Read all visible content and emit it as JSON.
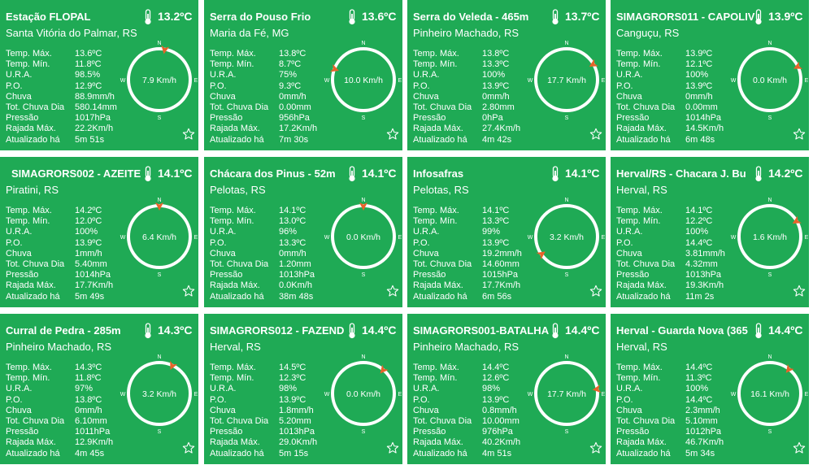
{
  "stations": [
    {
      "name": "Estação FLOPAL",
      "city": "Santa Vitória do Palmar, RS",
      "temp": "13.2ºC",
      "wind": "7.9 Km/h",
      "dir": 10,
      "rows": [
        [
          "Temp. Máx.",
          "13.6ºC"
        ],
        [
          "Temp. Mín.",
          "11.8ºC"
        ],
        [
          "U.R.A.",
          "98.5%"
        ],
        [
          "P.O.",
          "12.9ºC"
        ],
        [
          "Chuva",
          "88.9mm/h"
        ],
        [
          "Tot. Chuva Dia",
          "580.14mm"
        ],
        [
          "Pressão",
          "1017hPa"
        ],
        [
          "Rajada Máx.",
          "22.2Km/h"
        ],
        [
          "Atualizado há",
          "5m 51s"
        ]
      ]
    },
    {
      "name": "Serra do Pouso Frio",
      "city": "Maria da Fé, MG",
      "temp": "13.6ºC",
      "wind": "10.0 Km/h",
      "dir": 290,
      "rows": [
        [
          "Temp. Máx.",
          "13.8ºC"
        ],
        [
          "Temp. Mín.",
          "8.7ºC"
        ],
        [
          "U.R.A.",
          "75%"
        ],
        [
          "P.O.",
          "9.3ºC"
        ],
        [
          "Chuva",
          "0mm/h"
        ],
        [
          "Tot. Chuva Dia",
          "0.00mm"
        ],
        [
          "Pressão",
          "956hPa"
        ],
        [
          "Rajada Máx.",
          "17.2Km/h"
        ],
        [
          "Atualizado há",
          "7m 30s"
        ]
      ]
    },
    {
      "name": "Serra do Veleda - 465m",
      "city": "Pinheiro Machado, RS",
      "temp": "13.7ºC",
      "wind": "17.7 Km/h",
      "dir": 60,
      "rows": [
        [
          "Temp. Máx.",
          "13.8ºC"
        ],
        [
          "Temp. Mín.",
          "13.3ºC"
        ],
        [
          "U.R.A.",
          "100%"
        ],
        [
          "P.O.",
          "13.9ºC"
        ],
        [
          "Chuva",
          "0mm/h"
        ],
        [
          "Tot. Chuva Dia",
          "2.80mm"
        ],
        [
          "Pressão",
          "0hPa"
        ],
        [
          "Rajada Máx.",
          "27.4Km/h"
        ],
        [
          "Atualizado há",
          "4m 42s"
        ]
      ]
    },
    {
      "name": "SIMAGRORS011 - CAPOLIV",
      "city": "Canguçu, RS",
      "temp": "13.9ºC",
      "wind": "0.0 Km/h",
      "dir": 65,
      "rows": [
        [
          "Temp. Máx.",
          "13.9ºC"
        ],
        [
          "Temp. Mín.",
          "12.1ºC"
        ],
        [
          "U.R.A.",
          "100%"
        ],
        [
          "P.O.",
          "13.9ºC"
        ],
        [
          "Chuva",
          "0mm/h"
        ],
        [
          "Tot. Chuva Dia",
          "0.00mm"
        ],
        [
          "Pressão",
          "1014hPa"
        ],
        [
          "Rajada Máx.",
          "14.5Km/h"
        ],
        [
          "Atualizado há",
          "6m 48s"
        ]
      ]
    },
    {
      "name": "SIMAGRORS002 - AZEITE",
      "city": "Piratini, RS",
      "temp": "14.1ºC",
      "wind": "6.4 Km/h",
      "dir": 0,
      "rows": [
        [
          "Temp. Máx.",
          "14.2ºC"
        ],
        [
          "Temp. Mín.",
          "12.0ºC"
        ],
        [
          "U.R.A.",
          "100%"
        ],
        [
          "P.O.",
          "13.9ºC"
        ],
        [
          "Chuva",
          "1mm/h"
        ],
        [
          "Tot. Chuva Dia",
          "5.40mm"
        ],
        [
          "Pressão",
          "1014hPa"
        ],
        [
          "Rajada Máx.",
          "17.7Km/h"
        ],
        [
          "Atualizado há",
          "5m 49s"
        ]
      ]
    },
    {
      "name": "Chácara dos Pinus - 52m",
      "city": "Pelotas, RS",
      "temp": "14.1ºC",
      "wind": "0.0 Km/h",
      "dir": 0,
      "rows": [
        [
          "Temp. Máx.",
          "14.1ºC"
        ],
        [
          "Temp. Mín.",
          "13.0ºC"
        ],
        [
          "U.R.A.",
          "96%"
        ],
        [
          "P.O.",
          "13.3ºC"
        ],
        [
          "Chuva",
          "0mm/h"
        ],
        [
          "Tot. Chuva Dia",
          "1.20mm"
        ],
        [
          "Pressão",
          "1013hPa"
        ],
        [
          "Rajada Máx.",
          "0.0Km/h"
        ],
        [
          "Atualizado há",
          "38m 48s"
        ]
      ]
    },
    {
      "name": "Infosafras",
      "city": "Pelotas, RS",
      "temp": "14.1ºC",
      "wind": "3.2 Km/h",
      "dir": 235,
      "rows": [
        [
          "Temp. Máx.",
          "14.1ºC"
        ],
        [
          "Temp. Mín.",
          "13.3ºC"
        ],
        [
          "U.R.A.",
          "99%"
        ],
        [
          "P.O.",
          "13.9ºC"
        ],
        [
          "Chuva",
          "19.2mm/h"
        ],
        [
          "Tot. Chuva Dia",
          "14.60mm"
        ],
        [
          "Pressão",
          "1015hPa"
        ],
        [
          "Rajada Máx.",
          "17.7Km/h"
        ],
        [
          "Atualizado há",
          "6m 56s"
        ]
      ]
    },
    {
      "name": "Herval/RS - Chacara J. Bu",
      "city": "Herval, RS",
      "temp": "14.2ºC",
      "wind": "1.6 Km/h",
      "dir": 60,
      "rows": [
        [
          "Temp. Máx.",
          "14.1ºC"
        ],
        [
          "Temp. Mín.",
          "12.2ºC"
        ],
        [
          "U.R.A.",
          "100%"
        ],
        [
          "P.O.",
          "14.4ºC"
        ],
        [
          "Chuva",
          "3.81mm/h"
        ],
        [
          "Tot. Chuva Dia",
          "4.32mm"
        ],
        [
          "Pressão",
          "1013hPa"
        ],
        [
          "Rajada Máx.",
          "19.3Km/h"
        ],
        [
          "Atualizado há",
          "11m 2s"
        ]
      ]
    },
    {
      "name": "Curral de Pedra - 285m",
      "city": "Pinheiro Machado, RS",
      "temp": "14.3ºC",
      "wind": "3.2 Km/h",
      "dir": 25,
      "rows": [
        [
          "Temp. Máx.",
          "14.3ºC"
        ],
        [
          "Temp. Mín.",
          "11.8ºC"
        ],
        [
          "U.R.A.",
          "97%"
        ],
        [
          "P.O.",
          "13.8ºC"
        ],
        [
          "Chuva",
          "0mm/h"
        ],
        [
          "Tot. Chuva Dia",
          "6.10mm"
        ],
        [
          "Pressão",
          "1011hPa"
        ],
        [
          "Rajada Máx.",
          "12.9Km/h"
        ],
        [
          "Atualizado há",
          "4m 45s"
        ]
      ]
    },
    {
      "name": "SIMAGRORS012 - FAZEND",
      "city": "Herval, RS",
      "temp": "14.4ºC",
      "wind": "0.0 Km/h",
      "dir": 40,
      "rows": [
        [
          "Temp. Máx.",
          "14.5ºC"
        ],
        [
          "Temp. Mín.",
          "12.3ºC"
        ],
        [
          "U.R.A.",
          "98%"
        ],
        [
          "P.O.",
          "13.9ºC"
        ],
        [
          "Chuva",
          "1.8mm/h"
        ],
        [
          "Tot. Chuva Dia",
          "5.20mm"
        ],
        [
          "Pressão",
          "1013hPa"
        ],
        [
          "Rajada Máx.",
          "29.0Km/h"
        ],
        [
          "Atualizado há",
          "5m 15s"
        ]
      ]
    },
    {
      "name": "SIMAGRORS001-BATALHA",
      "city": "Pinheiro Machado, RS",
      "temp": "14.4ºC",
      "wind": "17.7 Km/h",
      "dir": 82,
      "rows": [
        [
          "Temp. Máx.",
          "14.4ºC"
        ],
        [
          "Temp. Mín.",
          "12.6ºC"
        ],
        [
          "U.R.A.",
          "98%"
        ],
        [
          "P.O.",
          "13.9ºC"
        ],
        [
          "Chuva",
          "0.8mm/h"
        ],
        [
          "Tot. Chuva Dia",
          "10.00mm"
        ],
        [
          "Pressão",
          "976hPa"
        ],
        [
          "Rajada Máx.",
          "40.2Km/h"
        ],
        [
          "Atualizado há",
          "4m 51s"
        ]
      ]
    },
    {
      "name": "Herval - Guarda Nova (365",
      "city": "Herval, RS",
      "temp": "14.4ºC",
      "wind": "16.1 Km/h",
      "dir": 38,
      "rows": [
        [
          "Temp. Máx.",
          "14.4ºC"
        ],
        [
          "Temp. Mín.",
          "11.3ºC"
        ],
        [
          "U.R.A.",
          "100%"
        ],
        [
          "P.O.",
          "14.4ºC"
        ],
        [
          "Chuva",
          "2.3mm/h"
        ],
        [
          "Tot. Chuva Dia",
          "5.10mm"
        ],
        [
          "Pressão",
          "1012hPa"
        ],
        [
          "Rajada Máx.",
          "46.7Km/h"
        ],
        [
          "Atualizado há",
          "5m 34s"
        ]
      ]
    }
  ],
  "compass_labels": {
    "n": "N",
    "s": "S",
    "e": "E",
    "w": "W"
  },
  "colors": {
    "card": "#1faa55",
    "arrow": "#e8632a",
    "text": "#ffffff"
  },
  "icons": {
    "temperature": "thermometer-icon",
    "favorite": "star-outline-icon",
    "wind": "compass-dial"
  }
}
